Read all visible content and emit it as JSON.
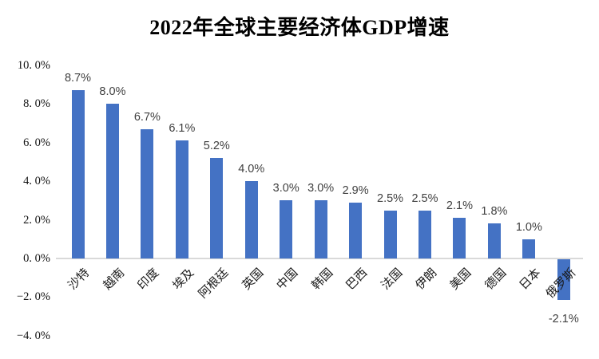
{
  "chart_data": {
    "type": "bar",
    "title": "2022年全球主要经济体GDP增速",
    "categories": [
      "沙特",
      "越南",
      "印度",
      "埃及",
      "阿根廷",
      "英国",
      "中国",
      "韩国",
      "巴西",
      "法国",
      "伊朗",
      "美国",
      "德国",
      "日本",
      "俄罗斯"
    ],
    "values": [
      8.7,
      8.0,
      6.7,
      6.1,
      5.2,
      4.0,
      3.0,
      3.0,
      2.9,
      2.5,
      2.5,
      2.1,
      1.8,
      1.0,
      -2.1
    ],
    "value_labels": [
      "8.7%",
      "8.0%",
      "6.7%",
      "6.1%",
      "5.2%",
      "4.0%",
      "3.0%",
      "3.0%",
      "2.9%",
      "2.5%",
      "2.5%",
      "2.1%",
      "1.8%",
      "1.0%",
      "-2.1%"
    ],
    "xlabel": "",
    "ylabel": "",
    "ylim": [
      -4,
      10
    ],
    "ytick_values": [
      10,
      8,
      6,
      4,
      2,
      0,
      -2,
      -4
    ],
    "ytick_labels": [
      "10. 0%",
      "8. 0%",
      "6. 0%",
      "4. 0%",
      "2. 0%",
      "0. 0%",
      "−2. 0%",
      "−4. 0%"
    ],
    "grid": false,
    "legend": false,
    "bar_color": "#4472C4",
    "axis_line_color": "#D9D9D9",
    "value_label_color": "#404040"
  }
}
